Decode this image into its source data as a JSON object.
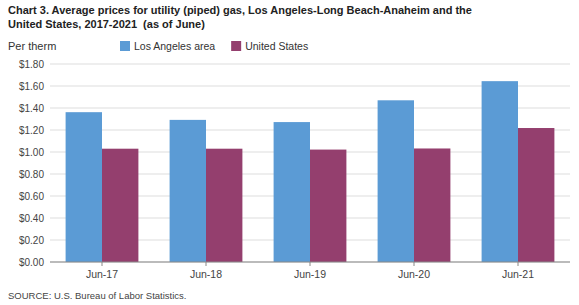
{
  "chart_data": {
    "type": "bar",
    "title": "Chart 3. Average prices for utility (piped) gas, Los Angeles-Long Beach-Anaheim and the\nUnited States, 2017-2021  (as of June)",
    "ylabel": "Per therm",
    "source": "SOURCE: U.S. Bureau of Labor Statistics.",
    "categories": [
      "Jun-17",
      "Jun-18",
      "Jun-19",
      "Jun-20",
      "Jun-21"
    ],
    "series": [
      {
        "name": "Los Angeles area",
        "color": "#5B9BD5",
        "values": [
          1.362,
          1.292,
          1.272,
          1.47,
          1.644
        ]
      },
      {
        "name": "United States",
        "color": "#943F6E",
        "values": [
          1.03,
          1.03,
          1.022,
          1.032,
          1.218
        ]
      }
    ],
    "ylim": [
      0,
      1.8
    ],
    "yticks": [
      {
        "value": 0,
        "label": "$0.00"
      },
      {
        "value": 0.2,
        "label": "$0.20"
      },
      {
        "value": 0.4,
        "label": "$0.40"
      },
      {
        "value": 0.6,
        "label": "$0.60"
      },
      {
        "value": 0.8,
        "label": "$0.80"
      },
      {
        "value": 1.0,
        "label": "$1.00"
      },
      {
        "value": 1.2,
        "label": "$1.20"
      },
      {
        "value": 1.4,
        "label": "$1.40"
      },
      {
        "value": 1.6,
        "label": "$1.60"
      },
      {
        "value": 1.8,
        "label": "$1.80"
      }
    ],
    "grid": true,
    "legend": "upper left"
  }
}
